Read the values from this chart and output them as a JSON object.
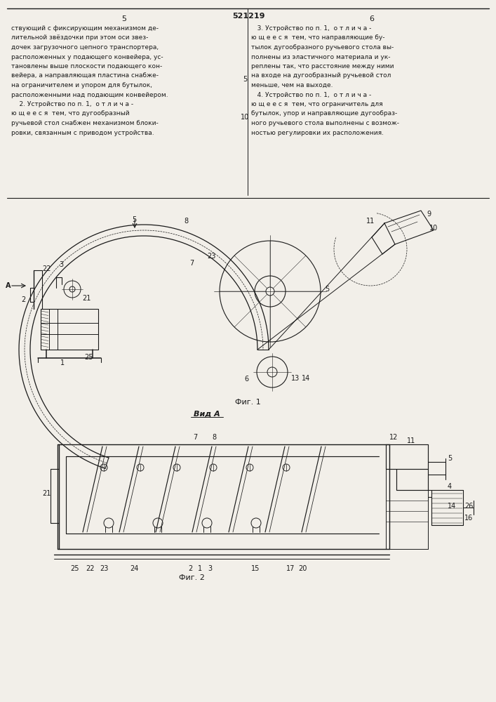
{
  "page_bg": "#f2efe9",
  "line_color": "#1a1a1a",
  "text_color": "#1a1a1a",
  "page_number_left": "5",
  "page_number_right": "6",
  "patent_number": "521219",
  "left_col_text": [
    "ствующий с фиксирующим механизмом де-",
    "лительной звёздочки при этом оси звез-",
    "дочек загрузочного цепного транспортера,",
    "расположенных у подающего конвейера, ус-",
    "тановлены выше плоскости подающего кон-",
    "вейера, а направляющая пластина снабже-",
    "на ограничителем и упором для бутылок,",
    "расположенными над подающим конвейером.",
    "    2. Устройство по п. 1,  о т л и ч а -",
    "ю щ е е с я  тем, что дугообразный",
    "ручьевой стол снабжен механизмом блоки-",
    "ровки, связанным с приводом устройства."
  ],
  "right_col_text": [
    "   3. Устройство по п. 1,  о т л и ч а -",
    "ю щ е е с я  тем, что направляющие бу-",
    "тылок дугообразного ручьевого стола вы-",
    "полнены из эластичного материала и ук-",
    "реплены так, что расстояние между ними",
    "на входе на дугообразный ручьевой стол",
    "меньше, чем на выходе.",
    "   4. Устройство по п. 1,  о т л и ч а -",
    "ю щ е е с я  тем, что ограничитель для",
    "бутылок, упор и направляющие дугообраз-",
    "ного ручьевого стола выполнены с возмож-",
    "ностью регулировки их расположения."
  ],
  "fig1_caption": "Фиг. 1",
  "fig2_caption": "Фиг. 2",
  "fig2_header": "Вид А"
}
